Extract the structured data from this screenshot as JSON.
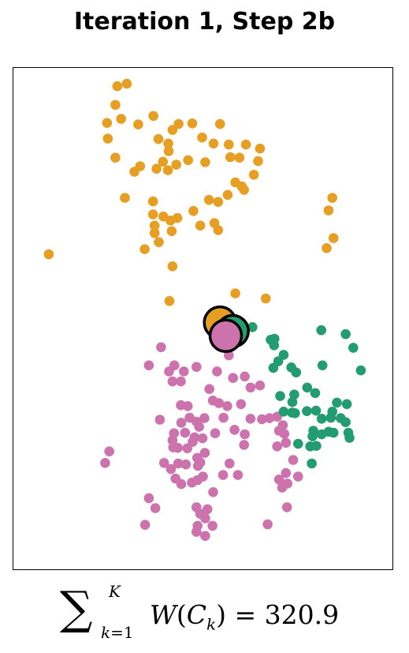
{
  "chart_data": {
    "type": "scatter",
    "title": "Iteration 1, Step 2b",
    "xlabel": "",
    "ylabel": "",
    "xlim": [
      0,
      100
    ],
    "ylim": [
      0,
      100
    ],
    "axes_visible": false,
    "grid": false,
    "legend": "none",
    "colors": {
      "orange": "#E69F22",
      "pink": "#CC72AD",
      "green": "#239C71"
    },
    "series": [
      {
        "color": "orange",
        "points": [
          [
            27.5,
            96.2
          ],
          [
            30,
            96.7
          ],
          [
            27,
            92.5
          ],
          [
            24.8,
            88.9
          ],
          [
            28.5,
            89.7
          ],
          [
            33,
            88.6
          ],
          [
            37,
            90.3
          ],
          [
            43.6,
            88.7
          ],
          [
            47.2,
            88.8
          ],
          [
            54.5,
            88.7
          ],
          [
            25,
            85.8
          ],
          [
            42,
            87.5
          ],
          [
            38.3,
            85.7
          ],
          [
            40.9,
            84.8
          ],
          [
            49.8,
            86
          ],
          [
            41,
            83.3
          ],
          [
            52.8,
            84.8
          ],
          [
            56.8,
            84.6
          ],
          [
            61.3,
            84.6
          ],
          [
            65,
            83.8
          ],
          [
            27,
            82
          ],
          [
            39.5,
            81.2
          ],
          [
            57.2,
            82.1
          ],
          [
            59.6,
            82
          ],
          [
            64.5,
            81.3
          ],
          [
            46.1,
            81.5
          ],
          [
            50.6,
            81.1
          ],
          [
            33.5,
            80.3
          ],
          [
            43,
            80.6
          ],
          [
            37.8,
            79.8
          ],
          [
            32,
            79.2
          ],
          [
            40.8,
            79.5
          ],
          [
            58.5,
            77.1
          ],
          [
            63.4,
            78.6
          ],
          [
            60.8,
            75.6
          ],
          [
            60.2,
            76.3
          ],
          [
            56.5,
            74.6
          ],
          [
            29.5,
            74
          ],
          [
            36.9,
            73.3
          ],
          [
            51.6,
            73.6
          ],
          [
            54,
            73.2
          ],
          [
            47.5,
            71.4
          ],
          [
            43.3,
            70
          ],
          [
            39.6,
            70.3
          ],
          [
            36.9,
            70.7
          ],
          [
            41.5,
            69.5
          ],
          [
            37.3,
            68.5
          ],
          [
            49.3,
            68.5
          ],
          [
            53,
            69
          ],
          [
            41.8,
            67.4
          ],
          [
            37.3,
            67
          ],
          [
            84,
            74
          ],
          [
            83,
            71.5
          ],
          [
            84.3,
            66
          ],
          [
            82.5,
            64
          ],
          [
            9.5,
            62.8
          ],
          [
            34.7,
            63.8
          ],
          [
            38.4,
            65.2
          ],
          [
            54,
            67.6
          ],
          [
            42,
            60.4
          ],
          [
            58.5,
            55
          ],
          [
            66.5,
            54
          ],
          [
            41.2,
            53.5
          ]
        ]
      },
      {
        "color": "pink",
        "points": [
          [
            42.5,
            40.7
          ],
          [
            39,
            44.3
          ],
          [
            35.8,
            40.7
          ],
          [
            44.2,
            37.5
          ],
          [
            48.3,
            40.4
          ],
          [
            53.7,
            39.5
          ],
          [
            51.7,
            36
          ],
          [
            41.1,
            39.5
          ],
          [
            42,
            37.5
          ],
          [
            45,
            39.5
          ],
          [
            57.9,
            38.2
          ],
          [
            61,
            38.5
          ],
          [
            62.5,
            36.3
          ],
          [
            65,
            36.7
          ],
          [
            60,
            33
          ],
          [
            56.4,
            32.6
          ],
          [
            52.6,
            33.7
          ],
          [
            54.2,
            33.2
          ],
          [
            46,
            32.6
          ],
          [
            50.4,
            30.2
          ],
          [
            44.2,
            32.8
          ],
          [
            46.5,
            30.3
          ],
          [
            48.3,
            29.5
          ],
          [
            55.4,
            30.3
          ],
          [
            38.7,
            29.9
          ],
          [
            44.3,
            29.3
          ],
          [
            62.5,
            30.1
          ],
          [
            65.5,
            30
          ],
          [
            67.5,
            30.2
          ],
          [
            69.5,
            30.5
          ],
          [
            71,
            28.8
          ],
          [
            49,
            28.5
          ],
          [
            45.3,
            27.3
          ],
          [
            47.8,
            26.4
          ],
          [
            42.4,
            27.2
          ],
          [
            42,
            25.8
          ],
          [
            47.3,
            25.5
          ],
          [
            49.9,
            26.2
          ],
          [
            53.2,
            27.2
          ],
          [
            58.3,
            27.9
          ],
          [
            61,
            27
          ],
          [
            70,
            27.7
          ],
          [
            71.4,
            27.1
          ],
          [
            69.5,
            24.6
          ],
          [
            60.8,
            24.9
          ],
          [
            50.5,
            23.3
          ],
          [
            48.5,
            22.3
          ],
          [
            71.8,
            25.3
          ],
          [
            42.2,
            24.4
          ],
          [
            43.4,
            24.3
          ],
          [
            45.9,
            24.2
          ],
          [
            48.7,
            20.7
          ],
          [
            45.5,
            21
          ],
          [
            49.3,
            21.4
          ],
          [
            43.5,
            21.2
          ],
          [
            73.7,
            21.9
          ],
          [
            41.6,
            20.1
          ],
          [
            57,
            21.2
          ],
          [
            55.3,
            18.9
          ],
          [
            59.2,
            18.9
          ],
          [
            25.4,
            23.6
          ],
          [
            24.3,
            21.3
          ],
          [
            39.8,
            21.3
          ],
          [
            48.6,
            17.9
          ],
          [
            50,
            18.6
          ],
          [
            42.8,
            18.2
          ],
          [
            47.1,
            17.4
          ],
          [
            44.3,
            17.1
          ],
          [
            70,
            18
          ],
          [
            71.8,
            19.3
          ],
          [
            75,
            18.6
          ],
          [
            72.2,
            17.2
          ],
          [
            70.8,
            16.4
          ],
          [
            52.7,
            15.5
          ],
          [
            49.3,
            11.2
          ],
          [
            35.8,
            14.3
          ],
          [
            48.3,
            12.5
          ],
          [
            37.5,
            12.3
          ],
          [
            51.2,
            12.1
          ],
          [
            50.6,
            10.3
          ],
          [
            34.8,
            9
          ],
          [
            52.5,
            8.8
          ],
          [
            48.6,
            8.8
          ],
          [
            48.3,
            7.6
          ],
          [
            50.6,
            6.8
          ],
          [
            67,
            9.1
          ],
          [
            72.1,
            12.5
          ],
          [
            56.8,
            42.7
          ],
          [
            58.9,
            45.4
          ],
          [
            56.8,
            47.5
          ]
        ]
      },
      {
        "color": "green",
        "points": [
          [
            60,
            48.2
          ],
          [
            63,
            48.3
          ],
          [
            67.8,
            45.8
          ],
          [
            68.8,
            46
          ],
          [
            68.7,
            44.7
          ],
          [
            81.1,
            47.7
          ],
          [
            87.5,
            46.9
          ],
          [
            89.5,
            44.2
          ],
          [
            71.2,
            42.8
          ],
          [
            69.8,
            41.5
          ],
          [
            68.5,
            40.2
          ],
          [
            73.2,
            40.3
          ],
          [
            81.4,
            40.7
          ],
          [
            91.5,
            39.7
          ],
          [
            74.5,
            39.3
          ],
          [
            77.4,
            36.3
          ],
          [
            79.5,
            35.2
          ],
          [
            85.2,
            33.3
          ],
          [
            87.8,
            33
          ],
          [
            70.3,
            34.6
          ],
          [
            74,
            34.9
          ],
          [
            73.5,
            33.4
          ],
          [
            74.2,
            31.2
          ],
          [
            77.3,
            31.6
          ],
          [
            84,
            31.5
          ],
          [
            86.2,
            30.2
          ],
          [
            71.2,
            31.5
          ],
          [
            73.4,
            31.3
          ],
          [
            79.7,
            31.7
          ],
          [
            81.2,
            30.1
          ],
          [
            83.6,
            30.3
          ],
          [
            87.5,
            29.4
          ],
          [
            79,
            27.7
          ],
          [
            83,
            27.5
          ],
          [
            78.8,
            26.6
          ],
          [
            81.2,
            27
          ],
          [
            84.3,
            27.3
          ],
          [
            88.2,
            27.3
          ],
          [
            88.5,
            26.3
          ],
          [
            75,
            25.1
          ],
          [
            78.2,
            24.6
          ],
          [
            79.8,
            24.7
          ],
          [
            78.6,
            21.2
          ]
        ]
      }
    ],
    "centroids": [
      {
        "color": "orange",
        "x": 54.5,
        "y": 49.2
      },
      {
        "color": "green",
        "x": 57.8,
        "y": 47.5
      },
      {
        "color": "pink",
        "x": 56.0,
        "y": 46.6
      }
    ]
  },
  "formula": {
    "sigma": "∑",
    "upper": "K",
    "lower_index": "k",
    "lower_eq": "=1",
    "func": "W",
    "open": "(",
    "var": "C",
    "sub": "k",
    "close_eq": ") = 320.9"
  }
}
